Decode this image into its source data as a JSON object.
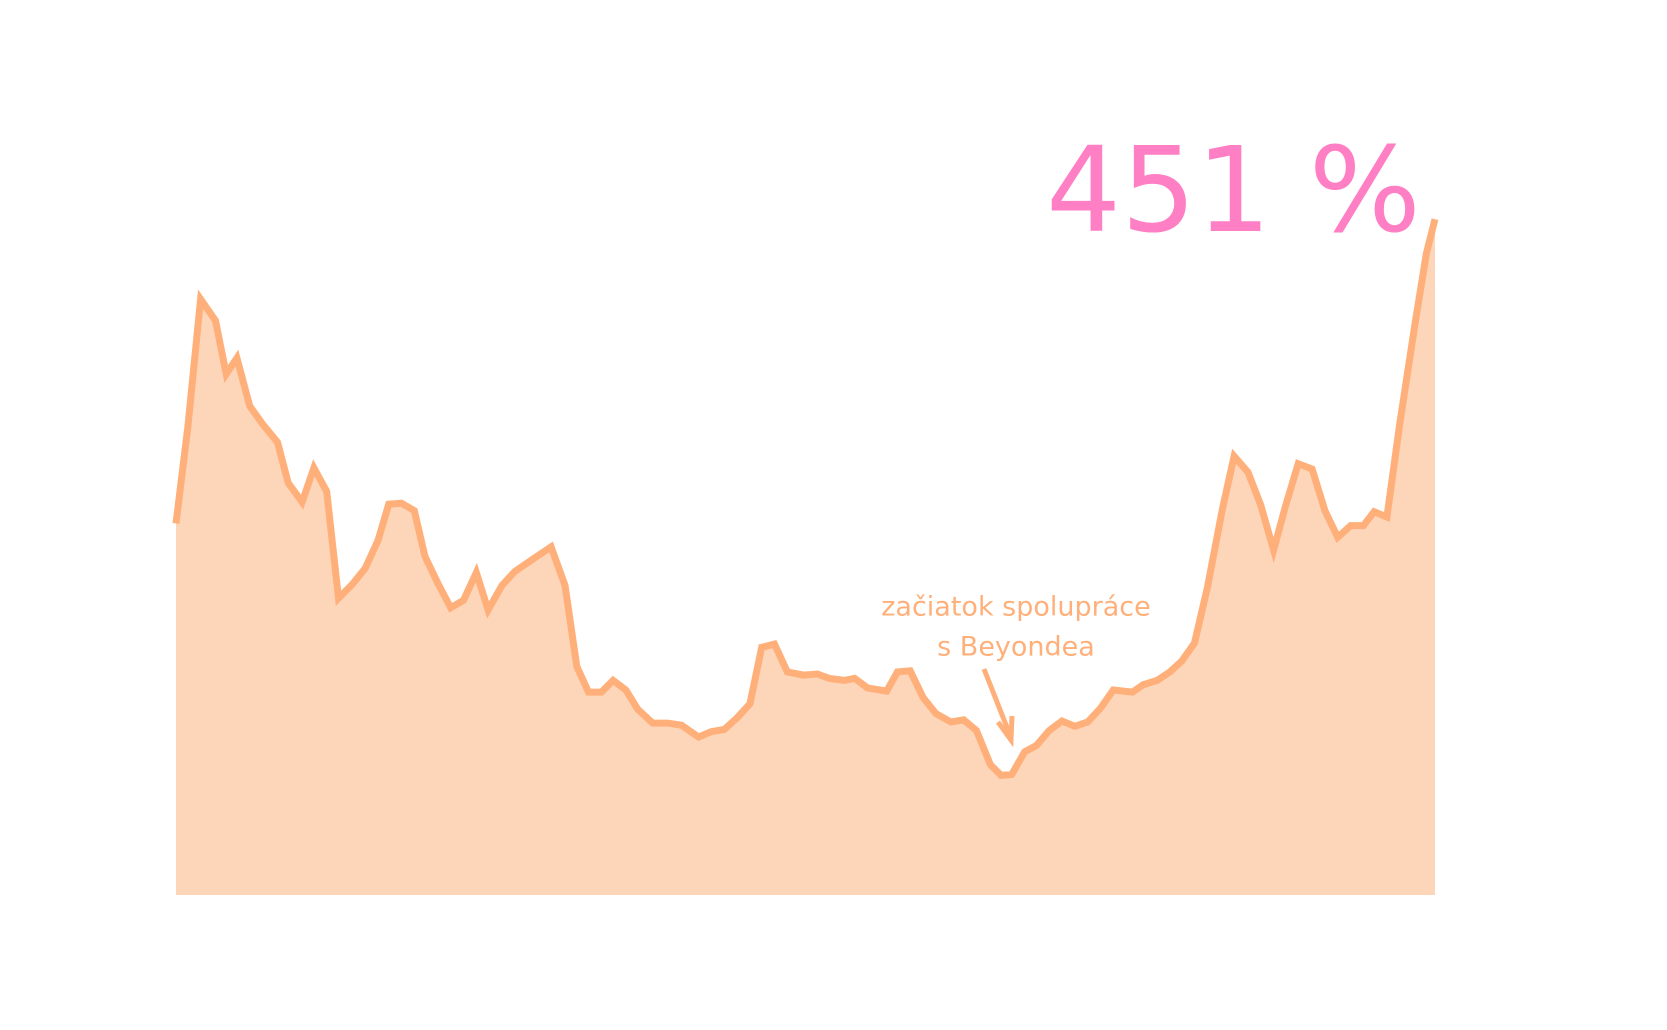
{
  "chart_data": {
    "type": "area",
    "headline": "451 %",
    "annotations": [
      "začiatok spolupráce",
      "s Beyondea"
    ],
    "line_color": "#ffb07a",
    "fill_color": "#fdd5b9",
    "headline_color": "#ff7fc4",
    "xlim": [
      0,
      1178
    ],
    "ylim": [
      0,
      650
    ],
    "x": [
      0,
      11,
      23,
      37,
      47,
      57,
      69,
      81,
      95,
      105,
      118,
      129,
      141,
      152,
      165,
      177,
      189,
      199,
      211,
      223,
      233,
      245,
      257,
      269,
      281,
      292,
      305,
      317,
      333,
      351,
      364,
      375,
      386,
      398,
      409,
      421,
      432,
      446,
      460,
      473,
      489,
      501,
      513,
      525,
      537,
      548,
      560,
      572,
      587,
      600,
      611,
      625,
      635,
      647,
      665,
      675,
      687,
      699,
      711,
      725,
      737,
      749,
      762,
      772,
      782,
      794,
      805,
      817,
      829,
      841,
      853,
      865,
      877,
      895,
      905,
      918,
      930,
      941,
      953,
      965,
      979,
      990,
      1003,
      1015,
      1027,
      1038,
      1050,
      1063,
      1075,
      1087,
      1099,
      1111,
      1121,
      1133,
      1145,
      1159,
      1170,
      1178
    ],
    "values": [
      348,
      438,
      558,
      538,
      488,
      503,
      458,
      441,
      424,
      386,
      368,
      400,
      378,
      278,
      291,
      306,
      332,
      366,
      367,
      360,
      317,
      292,
      269,
      276,
      302,
      267,
      290,
      303,
      314,
      326,
      290,
      214,
      190,
      190,
      201,
      192,
      174,
      161,
      161,
      159,
      148,
      153,
      155,
      166,
      179,
      232,
      235,
      209,
      206,
      207,
      203,
      201,
      203,
      194,
      191,
      209,
      210,
      185,
      170,
      162,
      164,
      154,
      122,
      112,
      113,
      134,
      140,
      154,
      163,
      158,
      162,
      175,
      192,
      190,
      197,
      201,
      209,
      219,
      236,
      288,
      361,
      411,
      396,
      365,
      323,
      364,
      404,
      399,
      360,
      335,
      346,
      346,
      359,
      354,
      441,
      533,
      601,
      633
    ]
  }
}
